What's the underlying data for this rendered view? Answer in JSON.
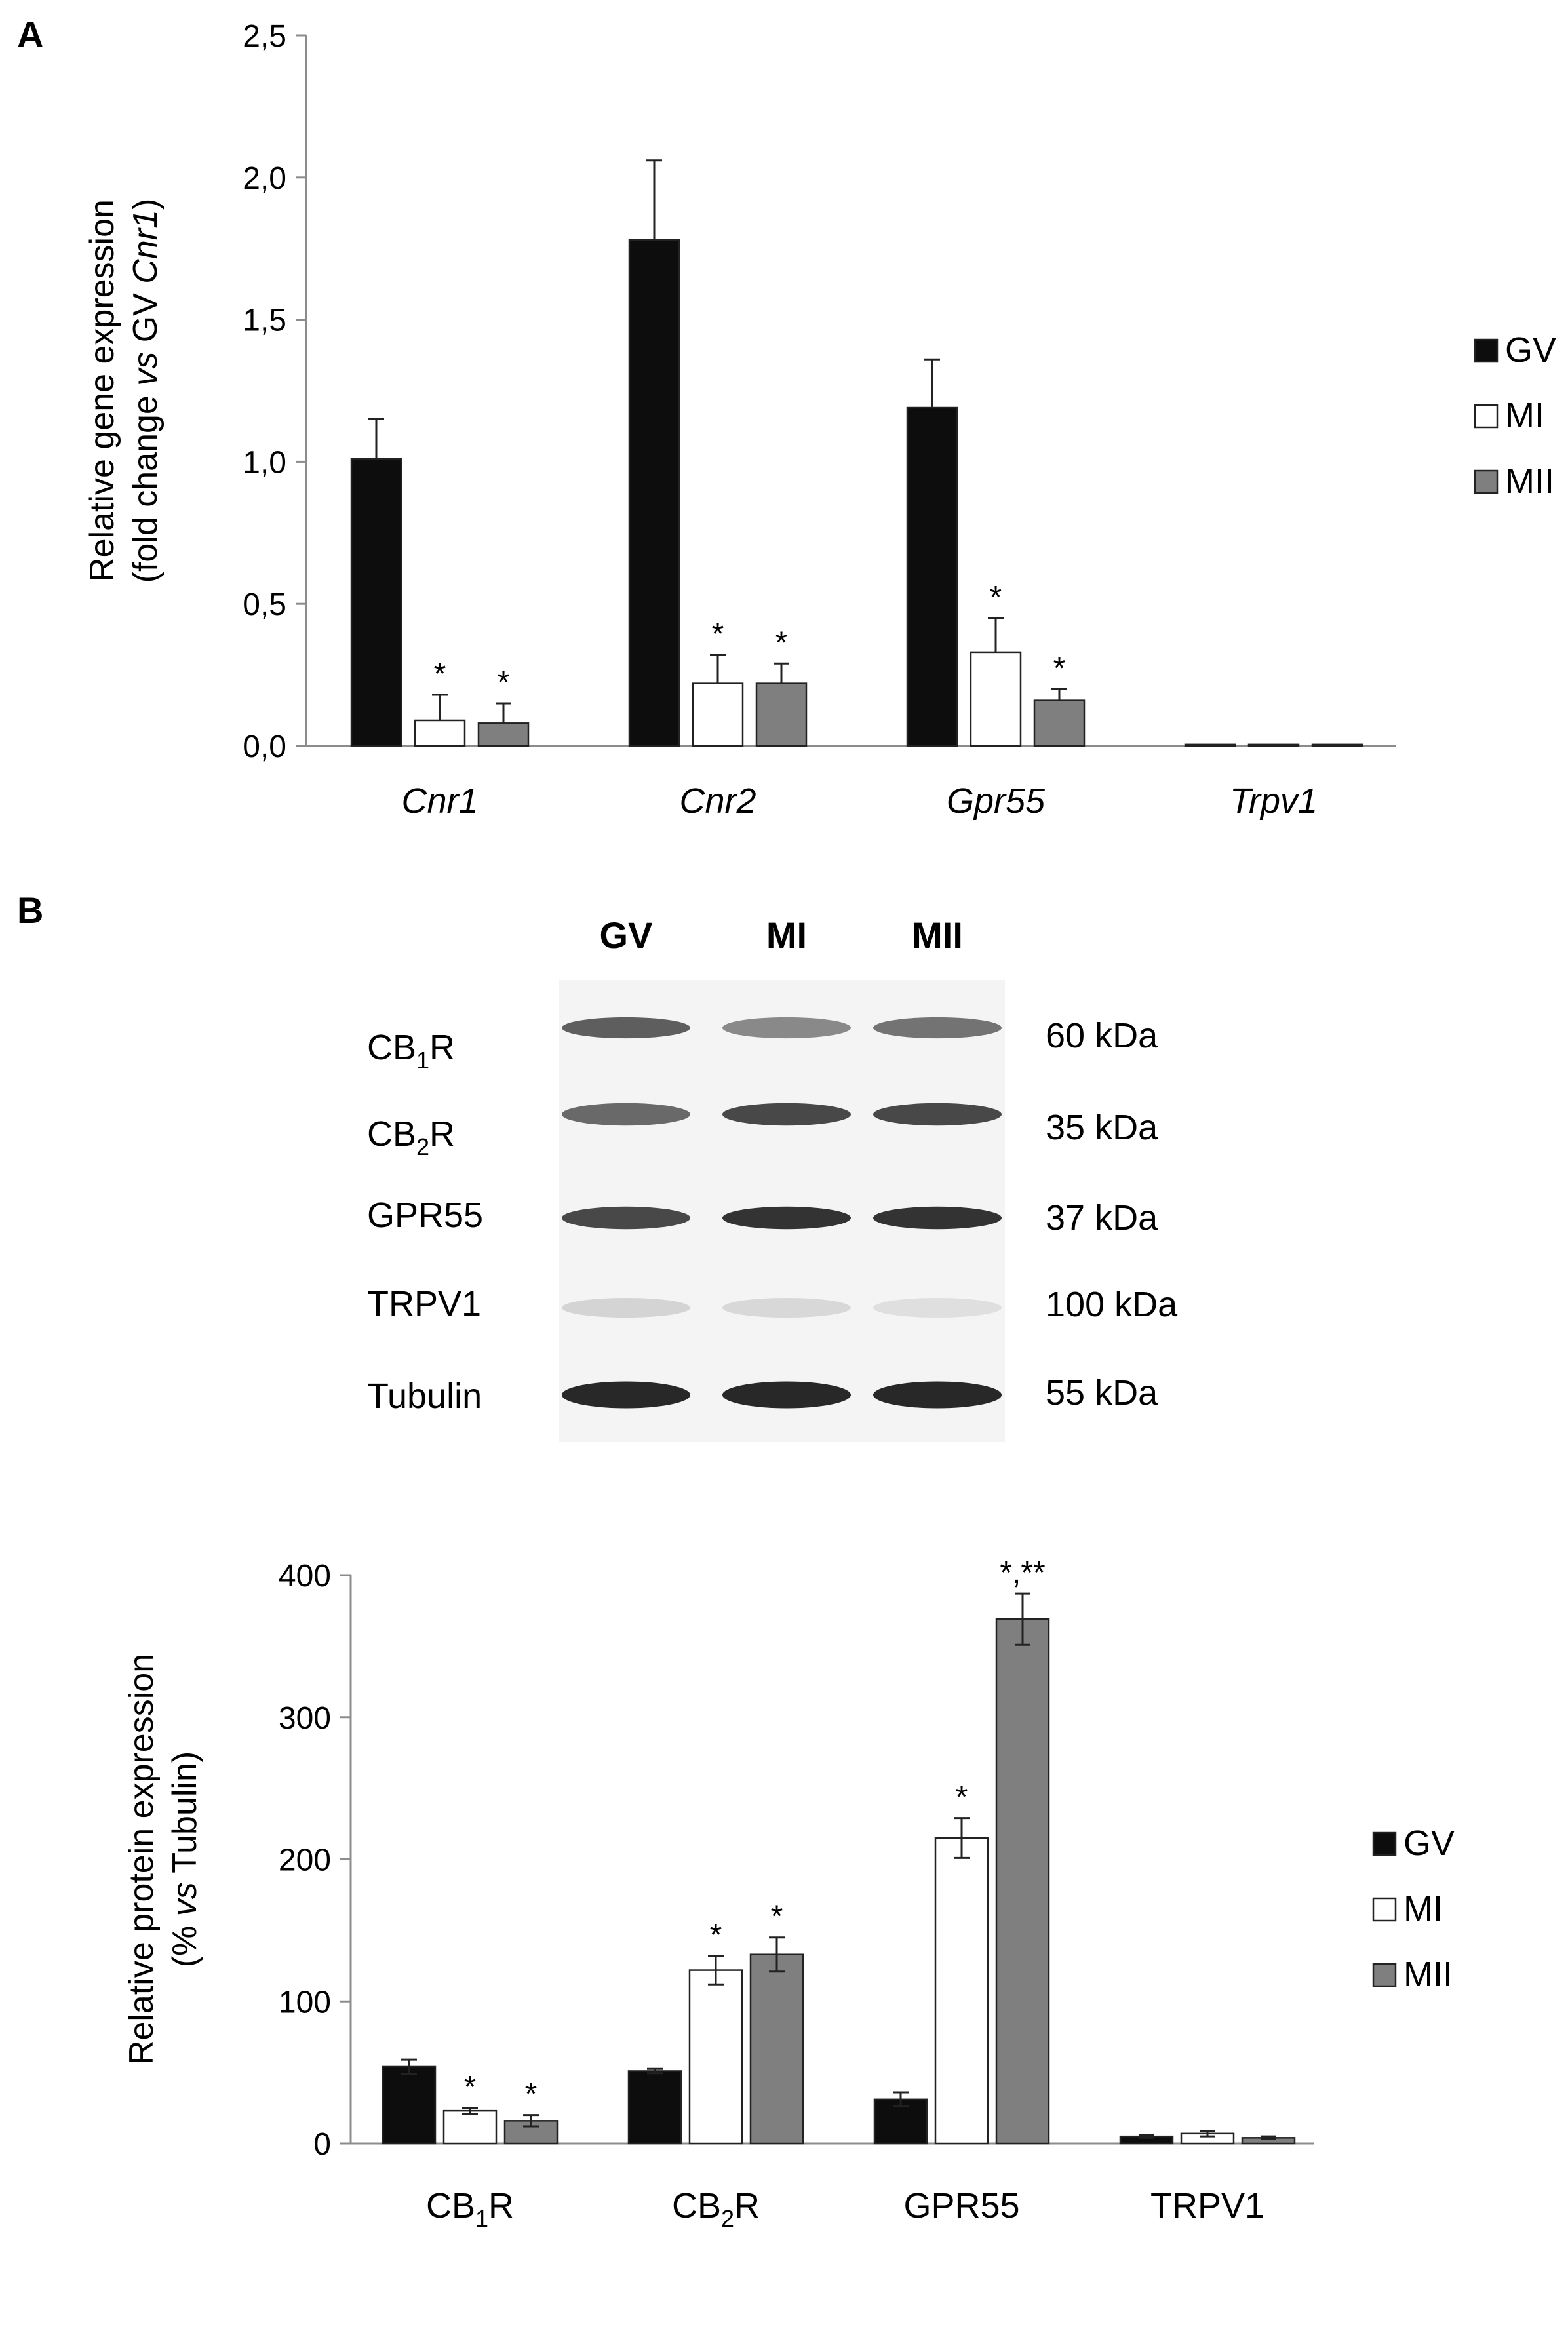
{
  "panels": {
    "a": "A",
    "b": "B"
  },
  "colors": {
    "GV": "#0d0d0d",
    "MI": "#ffffff",
    "MII": "#7f7f7f",
    "axis": "#8c8c8c",
    "outline": "#222222"
  },
  "chart_data": [
    {
      "type": "bar",
      "panel": "A",
      "categories": [
        "Cnr1",
        "Cnr2",
        "Gpr55",
        "Trpv1"
      ],
      "category_italic": true,
      "ylabel": {
        "line1": "Relative gene expression",
        "line2_prefix": "(fold change ",
        "line2_italic1": "vs",
        "line2_mid": " GV ",
        "line2_italic2": "Cnr1",
        "line2_suffix": ")"
      },
      "ylim": [
        0,
        2.5
      ],
      "yticks": [
        0,
        0.5,
        1,
        1.5,
        2,
        2.5
      ],
      "ytick_labels": [
        "0,0",
        "0,5",
        "1,0",
        "1,5",
        "2,0",
        "2,5"
      ],
      "legend_position": "right",
      "error_bars": "one-sided",
      "series": [
        {
          "name": "GV",
          "values": [
            1.01,
            1.78,
            1.19,
            0.005
          ],
          "errors": [
            0.14,
            0.28,
            0.17,
            0.0
          ],
          "marks": [
            "",
            "",
            "",
            ""
          ]
        },
        {
          "name": "MI",
          "values": [
            0.09,
            0.22,
            0.33,
            0.005
          ],
          "errors": [
            0.09,
            0.1,
            0.12,
            0.0
          ],
          "marks": [
            "*",
            "*",
            "*",
            ""
          ]
        },
        {
          "name": "MII",
          "values": [
            0.08,
            0.22,
            0.16,
            0.005
          ],
          "errors": [
            0.07,
            0.07,
            0.04,
            0.0
          ],
          "marks": [
            "*",
            "*",
            "*",
            ""
          ]
        }
      ]
    },
    {
      "type": "bar",
      "panel": "B",
      "categories": [
        {
          "base": "CB",
          "sub": "1",
          "rest": "R"
        },
        {
          "base": "CB",
          "sub": "2",
          "rest": "R"
        },
        {
          "base": "GPR55",
          "sub": "",
          "rest": ""
        },
        {
          "base": "TRPV1",
          "sub": "",
          "rest": ""
        }
      ],
      "ylabel": {
        "line1": "Relative protein expression",
        "line2_prefix": "(% ",
        "line2_italic1": "vs",
        "line2_mid": " Tubulin)",
        "line2_italic2": "",
        "line2_suffix": ""
      },
      "ylim": [
        0,
        400
      ],
      "yticks": [
        0,
        100,
        200,
        300,
        400
      ],
      "ytick_labels": [
        "0",
        "100",
        "200",
        "300",
        "400"
      ],
      "legend_position": "right",
      "error_bars": "two-sided",
      "series": [
        {
          "name": "GV",
          "values": [
            54,
            51,
            31,
            5
          ],
          "errors": [
            5,
            1.5,
            5,
            1
          ],
          "marks": [
            "",
            "",
            "",
            ""
          ]
        },
        {
          "name": "MI",
          "values": [
            23,
            122,
            215,
            7
          ],
          "errors": [
            2,
            10,
            14,
            2
          ],
          "marks": [
            "*",
            "*",
            "*",
            ""
          ]
        },
        {
          "name": "MII",
          "values": [
            16,
            133,
            369,
            4
          ],
          "errors": [
            4,
            12,
            18,
            1
          ],
          "marks": [
            "*",
            "*",
            "*,**",
            ""
          ]
        }
      ]
    }
  ],
  "western_blot": {
    "lanes": [
      "GV",
      "MI",
      "MII"
    ],
    "rows": [
      {
        "base": "CB",
        "sub": "1",
        "rest": "R",
        "kda": "60 kDa",
        "intensity": [
          0.75,
          0.55,
          0.65
        ],
        "thickness": 0.55
      },
      {
        "base": "CB",
        "sub": "2",
        "rest": "R",
        "kda": "35 kDa",
        "intensity": [
          0.7,
          0.85,
          0.85
        ],
        "thickness": 0.6
      },
      {
        "base": "GPR55",
        "sub": "",
        "rest": "",
        "kda": "37 kDa",
        "intensity": [
          0.85,
          0.95,
          0.95
        ],
        "thickness": 0.6
      },
      {
        "base": "TRPV1",
        "sub": "",
        "rest": "",
        "kda": "100 kDa",
        "intensity": [
          0.2,
          0.18,
          0.15
        ],
        "thickness": 0.5
      },
      {
        "base": "Tubulin",
        "sub": "",
        "rest": "",
        "kda": "55 kDa",
        "intensity": [
          1.0,
          1.0,
          1.0
        ],
        "thickness": 0.75
      }
    ]
  }
}
